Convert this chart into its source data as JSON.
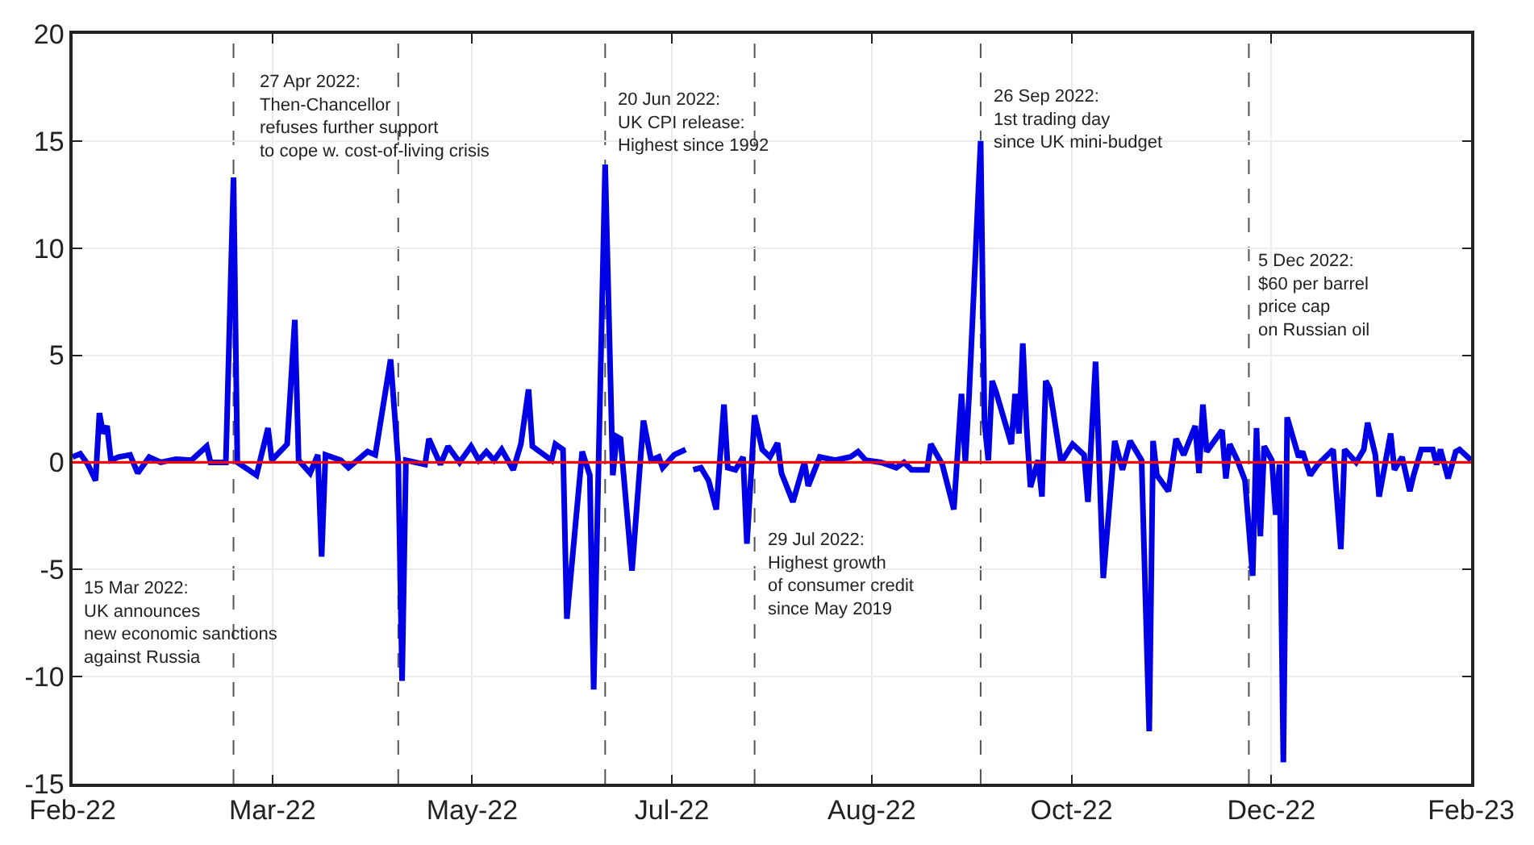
{
  "chart_data": {
    "type": "line",
    "xlim": [
      "2022-02-01",
      "2023-02-01"
    ],
    "xticks": [
      {
        "value": "2022-02-01",
        "label": "Feb-22"
      },
      {
        "value": "2022-03-25T03:26",
        "label": "Mar-22"
      },
      {
        "value": "2022-05-16T06:51",
        "label": "May-22"
      },
      {
        "value": "2022-07-07T10:17",
        "label": "Jul-22"
      },
      {
        "value": "2022-08-28T13:43",
        "label": "Aug-22"
      },
      {
        "value": "2022-10-19T17:09",
        "label": "Oct-22"
      },
      {
        "value": "2022-12-10T20:34",
        "label": "Dec-22"
      },
      {
        "value": "2023-02-01",
        "label": "Feb-23"
      }
    ],
    "ylim": [
      -15,
      20
    ],
    "yticks": [
      -15,
      -10,
      -5,
      0,
      5,
      10,
      15,
      20
    ],
    "grid": true,
    "series": [
      {
        "color": "#0000e6",
        "x": [
          "2022-02-01",
          "2022-02-03",
          "2022-02-05",
          "2022-02-07",
          "2022-02-08",
          "2022-02-09",
          "2022-02-10",
          "2022-02-11",
          "2022-02-13",
          "2022-02-16",
          "2022-02-18",
          "2022-02-21",
          "2022-02-24",
          "2022-02-28",
          "2022-03-04",
          "2022-03-08",
          "2022-03-09",
          "2022-03-13",
          "2022-03-15",
          "2022-03-16",
          "2022-03-21",
          "2022-03-24",
          "2022-03-25",
          "2022-03-29",
          "2022-03-31",
          "2022-04-01",
          "2022-04-04",
          "2022-04-06",
          "2022-04-07",
          "2022-04-08",
          "2022-04-12",
          "2022-04-14",
          "2022-04-19",
          "2022-04-21",
          "2022-04-25",
          "2022-04-27",
          "2022-04-28",
          "2022-04-29",
          "2022-05-04",
          "2022-05-05",
          "2022-05-08",
          "2022-05-10",
          "2022-05-13",
          "2022-05-16",
          "2022-05-18",
          "2022-05-20",
          "2022-05-22",
          "2022-05-24",
          "2022-05-27",
          "2022-05-29",
          "2022-05-31",
          "2022-06-01",
          "2022-06-06",
          "2022-06-07",
          "2022-06-09",
          "2022-06-10",
          "2022-06-14",
          "2022-06-16",
          "2022-06-17",
          "2022-06-18",
          "2022-06-20",
          "2022-06-22",
          "2022-06-23",
          "2022-06-24",
          "2022-06-27",
          "2022-06-29",
          "2022-06-30",
          "2022-07-02",
          "2022-07-04",
          "2022-07-05",
          "2022-07-08",
          "2022-07-11",
          "2022-07-12",
          "2022-07-13",
          "2022-07-15",
          "2022-07-17",
          "2022-07-19",
          "2022-07-21",
          "2022-07-22",
          "2022-07-24",
          "2022-07-26",
          "2022-07-27",
          "2022-07-29",
          "2022-07-31",
          "2022-08-02",
          "2022-08-04",
          "2022-08-05",
          "2022-08-08",
          "2022-08-11",
          "2022-08-12",
          "2022-08-15",
          "2022-08-19",
          "2022-08-23",
          "2022-08-25",
          "2022-08-27",
          "2022-08-31",
          "2022-09-04",
          "2022-09-06",
          "2022-09-08",
          "2022-09-12",
          "2022-09-13",
          "2022-09-16",
          "2022-09-19",
          "2022-09-21",
          "2022-09-22",
          "2022-09-23",
          "2022-09-26",
          "2022-09-27",
          "2022-09-28",
          "2022-09-29",
          "2022-09-30",
          "2022-10-04",
          "2022-10-05",
          "2022-10-06",
          "2022-10-07",
          "2022-10-08",
          "2022-10-09",
          "2022-10-11",
          "2022-10-12",
          "2022-10-13",
          "2022-10-14",
          "2022-10-17",
          "2022-10-20",
          "2022-10-23",
          "2022-10-24",
          "2022-10-26",
          "2022-10-28",
          "2022-10-31",
          "2022-11-02",
          "2022-11-04",
          "2022-11-07",
          "2022-11-09",
          "2022-11-10",
          "2022-11-11",
          "2022-11-14",
          "2022-11-16",
          "2022-11-18",
          "2022-11-21",
          "2022-11-22",
          "2022-11-23",
          "2022-11-24",
          "2022-11-28",
          "2022-11-29",
          "2022-11-30",
          "2022-12-02",
          "2022-12-04",
          "2022-12-06",
          "2022-12-07",
          "2022-12-08",
          "2022-12-09",
          "2022-12-11",
          "2022-12-12",
          "2022-12-13",
          "2022-12-14",
          "2022-12-15",
          "2022-12-18",
          "2022-12-19",
          "2022-12-21",
          "2022-12-23",
          "2022-12-27",
          "2022-12-29",
          "2022-12-30",
          "2023-01-02",
          "2023-01-04",
          "2023-01-05",
          "2023-01-07",
          "2023-01-08",
          "2023-01-11",
          "2023-01-12",
          "2023-01-14",
          "2023-01-16",
          "2023-01-17",
          "2023-01-19",
          "2023-01-22",
          "2023-01-23",
          "2023-01-24",
          "2023-01-26",
          "2023-01-28",
          "2023-01-29",
          "2023-02-01"
        ],
        "values": [
          0.25,
          0.4,
          -0.1,
          -0.85,
          2.3,
          1.35,
          1.7,
          0.1,
          0.25,
          0.35,
          -0.5,
          0.25,
          0,
          0.15,
          0.1,
          0.75,
          0,
          0,
          13.3,
          0,
          -0.6,
          1.6,
          0.1,
          0.85,
          6.65,
          0.1,
          -0.5,
          0.35,
          -4.4,
          0.35,
          0.1,
          -0.25,
          0.5,
          0.35,
          4.8,
          0,
          -10.2,
          0.1,
          -0.1,
          1.1,
          -0.1,
          0.75,
          0,
          0.75,
          0.1,
          0.5,
          0.1,
          0.6,
          -0.35,
          0.85,
          3.4,
          0.75,
          0.1,
          0.85,
          0.6,
          -7.3,
          0.5,
          -0.6,
          -10.6,
          -2.3,
          13.9,
          -0.6,
          1.2,
          1.1,
          -5.05,
          -0.35,
          1.95,
          0.1,
          0.25,
          -0.25,
          0.35,
          0.6,
          null,
          -0.35,
          -0.25,
          -0.85,
          -2.2,
          2.7,
          -0.25,
          -0.35,
          0.25,
          -3.8,
          2.2,
          0.6,
          0.25,
          0.9,
          -0.5,
          -1.85,
          0,
          -1.1,
          0.25,
          0.1,
          0.25,
          0.5,
          0.1,
          0,
          -0.25,
          0,
          -0.35,
          -0.35,
          0.85,
          -0.1,
          -2.2,
          3.2,
          0,
          3.2,
          15.0,
          1.85,
          0.1,
          3.8,
          3.3,
          0.85,
          3.2,
          1.35,
          5.55,
          1.6,
          -1.15,
          0.1,
          -1.6,
          3.8,
          3.45,
          0,
          0.85,
          0.35,
          -1.85,
          4.7,
          -5.4,
          1.0,
          -0.35,
          1.0,
          0.1,
          -12.55,
          1.0,
          -0.6,
          -1.35,
          1.1,
          0.35,
          1.7,
          -0.5,
          2.7,
          0.5,
          1.5,
          -0.75,
          0.85,
          0.1,
          -0.85,
          -5.3,
          1.6,
          -3.45,
          0.75,
          0.1,
          -2.45,
          -0.1,
          -14.0,
          2.1,
          0.25,
          0.5,
          -0.6,
          -0.1,
          0.6,
          -4.05,
          0.6,
          0,
          0.6,
          1.85,
          0.35,
          -1.6,
          1.35,
          -0.35,
          0.25,
          -1.35,
          -0.6,
          0.6,
          0.6,
          -0.1,
          0.6,
          -0.75,
          0.5,
          0.6,
          0.1
        ]
      }
    ],
    "ref_lines": [
      {
        "axis": "y",
        "value": 0,
        "color": "#ff0000",
        "line_style": "solid"
      },
      {
        "axis": "x",
        "value": "2022-03-15",
        "label": "15 Mar 2022:\nUK announces\nnew economic sanctions\nagainst Russia",
        "color": "#555555",
        "line_style": "dashed"
      },
      {
        "axis": "x",
        "value": "2022-04-27",
        "label": "27 Apr 2022:\nThen-Chancellor\nrefuses further support\nto cope w. cost-of-living crisis",
        "color": "#555555",
        "line_style": "dashed"
      },
      {
        "axis": "x",
        "value": "2022-06-20",
        "label": "20 Jun 2022:\nUK CPI release:\nHighest since 1992",
        "color": "#555555",
        "line_style": "dashed"
      },
      {
        "axis": "x",
        "value": "2022-07-29",
        "label": "29 Jul 2022:\nHighest growth\nof consumer credit\nsince May 2019",
        "color": "#555555",
        "line_style": "dashed"
      },
      {
        "axis": "x",
        "value": "2022-09-26",
        "label": "26 Sep 2022:\n1st trading day\nsince UK mini-budget",
        "color": "#555555",
        "line_style": "dashed"
      },
      {
        "axis": "x",
        "value": "2022-12-05",
        "label": "5 Dec 2022:\n$60 per barrel\nprice cap\non Russian oil",
        "color": "#555555",
        "line_style": "dashed"
      }
    ]
  }
}
